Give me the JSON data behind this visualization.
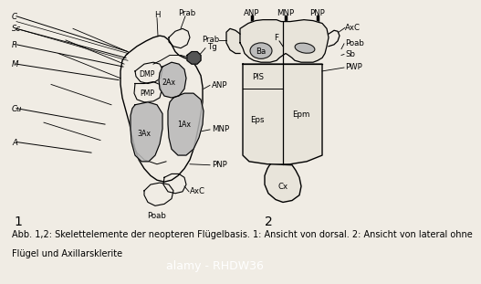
{
  "caption_line1": "Abb. 1,2: Skelettelemente der neopteren Flügelbasis. 1: Ansicht von dorsal. 2: Ansicht von lateral ohne",
  "caption_line2": "Flügel und Axillarsklerite",
  "watermark": "alamy - RHDW36",
  "bg_color": "#f0ece4",
  "watermark_bg": "#1a1a1a",
  "caption_fontsize": 7.0,
  "label_fontsize": 6.2,
  "gray_fill": "#b8b8b8",
  "light_fill": "#e8e4da"
}
